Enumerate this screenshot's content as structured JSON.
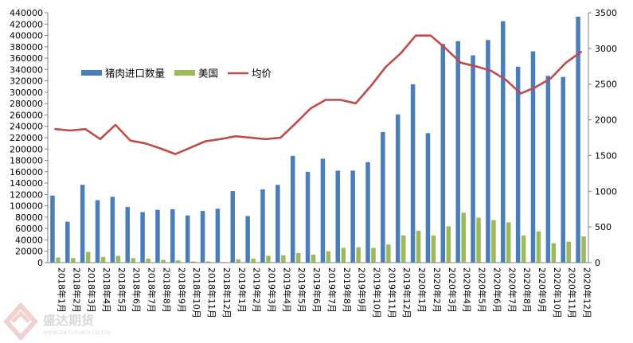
{
  "chart_data": {
    "type": "bar+line",
    "categories": [
      "2018年1月",
      "2018年2月",
      "2018年3月",
      "2018年4月",
      "2018年5月",
      "2018年6月",
      "2018年7月",
      "2018年8月",
      "2018年9月",
      "2018年10月",
      "2018年11月",
      "2018年12月",
      "2019年1月",
      "2019年2月",
      "2019年3月",
      "2019年4月",
      "2019年5月",
      "2019年6月",
      "2019年7月",
      "2019年8月",
      "2019年9月",
      "2019年10月",
      "2019年11月",
      "2019年12月",
      "2020年1月",
      "2020年2月",
      "2020年3月",
      "2020年4月",
      "2020年5月",
      "2020年6月",
      "2020年7月",
      "2020年8月",
      "2020年9月",
      "2020年10月",
      "2020年11月",
      "2020年12月"
    ],
    "series": [
      {
        "name": "猪肉进口数量",
        "type": "bar",
        "axis": "left",
        "color": "#4a7ebb",
        "values": [
          118000,
          72000,
          137000,
          110000,
          116000,
          98000,
          89000,
          93000,
          94000,
          83000,
          91000,
          95000,
          126000,
          82000,
          129000,
          137000,
          188000,
          160000,
          183000,
          162000,
          162000,
          177000,
          230000,
          261000,
          314000,
          228000,
          385000,
          390000,
          365000,
          392000,
          425000,
          345000,
          372000,
          329000,
          327000,
          433000
        ]
      },
      {
        "name": "美国",
        "type": "bar",
        "axis": "left",
        "color": "#9bbb59",
        "values": [
          9000,
          8000,
          19000,
          10000,
          12000,
          8000,
          7000,
          5000,
          4000,
          2000,
          2000,
          1000,
          6000,
          7000,
          12000,
          13000,
          17000,
          14000,
          20000,
          26000,
          27000,
          26000,
          32000,
          48000,
          56000,
          48000,
          64000,
          88000,
          79000,
          75000,
          71000,
          48000,
          55000,
          34000,
          37000,
          46000
        ]
      },
      {
        "name": "均价",
        "type": "line",
        "axis": "right",
        "color": "#be4b48",
        "values": [
          1870,
          1850,
          1870,
          1730,
          1930,
          1710,
          1670,
          1600,
          1520,
          1610,
          1700,
          1730,
          1770,
          1750,
          1730,
          1750,
          1950,
          2160,
          2280,
          2280,
          2230,
          2470,
          2740,
          2930,
          3180,
          3180,
          3000,
          2800,
          2750,
          2690,
          2560,
          2370,
          2460,
          2580,
          2800,
          2950
        ]
      }
    ],
    "ylim": [
      0,
      440000
    ],
    "y2lim": [
      0,
      3500
    ],
    "legend_position": "top-left, inside plot",
    "grid": false
  },
  "watermark": {
    "cn": "盛达期货",
    "en": "SHENGDA FUTURES CO.,LTD."
  }
}
